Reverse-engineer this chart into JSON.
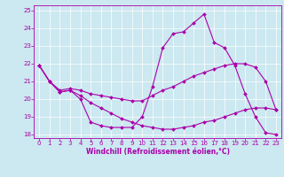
{
  "title": "",
  "xlabel": "Windchill (Refroidissement éolien,°C)",
  "ylabel": "",
  "background_color": "#cce8f0",
  "line_color": "#aa00aa",
  "xlim": [
    -0.5,
    23.5
  ],
  "ylim": [
    17.8,
    25.3
  ],
  "yticks": [
    18,
    19,
    20,
    21,
    22,
    23,
    24,
    25
  ],
  "xticks": [
    0,
    1,
    2,
    3,
    4,
    5,
    6,
    7,
    8,
    9,
    10,
    11,
    12,
    13,
    14,
    15,
    16,
    17,
    18,
    19,
    20,
    21,
    22,
    23
  ],
  "line1_x": [
    0,
    1,
    2,
    3,
    4,
    5,
    6,
    7,
    8,
    9,
    10,
    11,
    12,
    13,
    14,
    15,
    16,
    17,
    18,
    19,
    20,
    21,
    22,
    23
  ],
  "line1_y": [
    21.9,
    21.0,
    20.4,
    20.5,
    20.0,
    18.7,
    18.5,
    18.4,
    18.4,
    18.4,
    19.0,
    20.7,
    22.9,
    23.7,
    23.8,
    24.3,
    24.8,
    23.2,
    22.9,
    21.9,
    20.3,
    19.0,
    18.1,
    18.0
  ],
  "line2_x": [
    0,
    1,
    2,
    3,
    4,
    5,
    6,
    7,
    8,
    9,
    10,
    11,
    12,
    13,
    14,
    15,
    16,
    17,
    18,
    19,
    20,
    21,
    22,
    23
  ],
  "line2_y": [
    21.9,
    21.0,
    20.5,
    20.6,
    20.5,
    20.3,
    20.2,
    20.1,
    20.0,
    19.9,
    19.9,
    20.2,
    20.5,
    20.7,
    21.0,
    21.3,
    21.5,
    21.7,
    21.9,
    22.0,
    22.0,
    21.8,
    21.0,
    19.4
  ],
  "line3_x": [
    0,
    1,
    2,
    3,
    4,
    5,
    6,
    7,
    8,
    9,
    10,
    11,
    12,
    13,
    14,
    15,
    16,
    17,
    18,
    19,
    20,
    21,
    22,
    23
  ],
  "line3_y": [
    21.9,
    21.0,
    20.4,
    20.5,
    20.2,
    19.8,
    19.5,
    19.2,
    18.9,
    18.7,
    18.5,
    18.4,
    18.3,
    18.3,
    18.4,
    18.5,
    18.7,
    18.8,
    19.0,
    19.2,
    19.4,
    19.5,
    19.5,
    19.4
  ],
  "grid_color": "#ffffff",
  "tick_fontsize": 5.0,
  "xlabel_fontsize": 5.5,
  "marker_size": 2.0,
  "linewidth": 0.8
}
